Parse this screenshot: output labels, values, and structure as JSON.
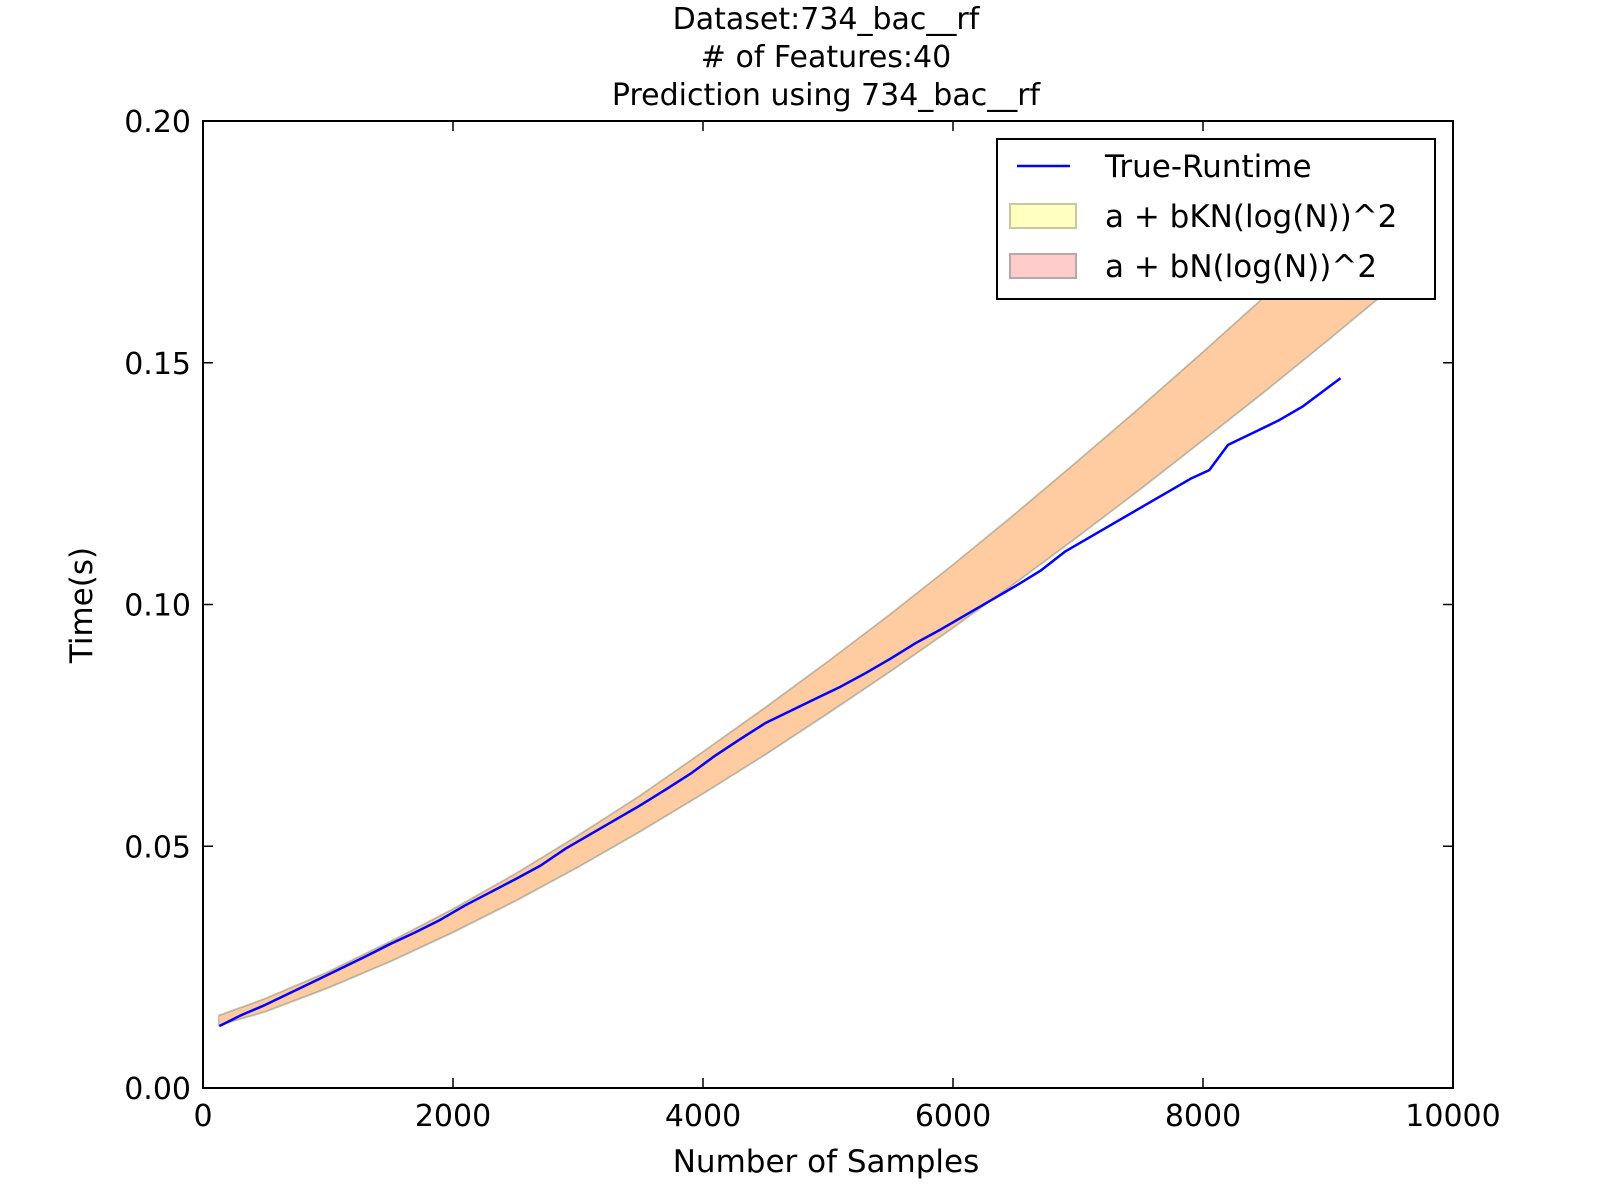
{
  "chart_data": {
    "type": "line",
    "title_lines": [
      "Dataset:734_bac__rf",
      "# of Features:40",
      "Prediction using 734_bac__rf"
    ],
    "xlabel": "Number of Samples",
    "ylabel": "Time(s)",
    "xlim": [
      0,
      10000
    ],
    "ylim": [
      0.0,
      0.2
    ],
    "xticks": [
      0,
      2000,
      4000,
      6000,
      8000,
      10000
    ],
    "yticks": [
      0.0,
      0.05,
      0.1,
      0.15,
      0.2
    ],
    "xtick_labels": [
      "0",
      "2000",
      "4000",
      "6000",
      "8000",
      "10000"
    ],
    "ytick_labels": [
      "0.00",
      "0.05",
      "0.10",
      "0.15",
      "0.20"
    ],
    "grid": false,
    "legend_position": "top-right",
    "series": [
      {
        "name": "True-Runtime",
        "kind": "line",
        "color": "#0000ff",
        "x": [
          130,
          300,
          500,
          700,
          900,
          1100,
          1300,
          1500,
          1700,
          1900,
          2100,
          2300,
          2500,
          2700,
          2900,
          3100,
          3300,
          3500,
          3700,
          3900,
          4100,
          4300,
          4500,
          4700,
          4900,
          5100,
          5300,
          5500,
          5700,
          5900,
          6100,
          6300,
          6500,
          6700,
          6900,
          7100,
          7300,
          7500,
          7700,
          7900,
          8050,
          8200,
          8400,
          8600,
          8800,
          9100
        ],
        "y": [
          0.0128,
          0.015,
          0.0172,
          0.0197,
          0.0222,
          0.0247,
          0.0272,
          0.0298,
          0.0322,
          0.0348,
          0.0378,
          0.0405,
          0.0432,
          0.046,
          0.0495,
          0.0525,
          0.0555,
          0.0585,
          0.0617,
          0.065,
          0.0688,
          0.0722,
          0.0755,
          0.078,
          0.0805,
          0.083,
          0.0858,
          0.0888,
          0.092,
          0.0948,
          0.0978,
          0.1008,
          0.1038,
          0.107,
          0.111,
          0.114,
          0.117,
          0.12,
          0.123,
          0.126,
          0.1278,
          0.133,
          0.1355,
          0.138,
          0.141,
          0.1468
        ]
      },
      {
        "name": "a + bKN(log(N))^2",
        "kind": "band",
        "fill": "#ffffc0",
        "edge": "#c8c8a0",
        "x": [
          130,
          500,
          1000,
          1500,
          2000,
          2500,
          3000,
          3500,
          4000,
          4500,
          5000,
          5500,
          6000,
          6500,
          7000,
          7500,
          8000,
          8500,
          9000,
          9500,
          9800
        ],
        "upper": [
          0.015,
          0.0185,
          0.024,
          0.0303,
          0.037,
          0.0443,
          0.0522,
          0.0605,
          0.0695,
          0.0787,
          0.0882,
          0.098,
          0.1082,
          0.1188,
          0.1297,
          0.1408,
          0.1522,
          0.1638,
          0.1758,
          0.188,
          0.1955
        ],
        "lower": [
          0.013,
          0.0158,
          0.0207,
          0.0262,
          0.0322,
          0.0387,
          0.0457,
          0.0531,
          0.0609,
          0.069,
          0.0775,
          0.0862,
          0.0952,
          0.1045,
          0.1141,
          0.1239,
          0.134,
          0.1442,
          0.1547,
          0.1654,
          0.172
        ]
      },
      {
        "name": "a + bN(log(N))^2",
        "kind": "band",
        "fill": "#ffb3b3",
        "edge": "#b8a8a8",
        "x": [
          130,
          500,
          1000,
          1500,
          2000,
          2500,
          3000,
          3500,
          4000,
          4500,
          5000,
          5500,
          6000,
          6500,
          7000,
          7500,
          8000,
          8500,
          9000,
          9500,
          9800
        ],
        "upper": [
          0.0148,
          0.0183,
          0.0238,
          0.0301,
          0.0368,
          0.0441,
          0.052,
          0.0603,
          0.0693,
          0.0785,
          0.088,
          0.0978,
          0.108,
          0.1186,
          0.1295,
          0.1406,
          0.152,
          0.1636,
          0.1756,
          0.1878,
          0.1953
        ],
        "lower": [
          0.0132,
          0.016,
          0.0209,
          0.0264,
          0.0324,
          0.0389,
          0.0459,
          0.0533,
          0.0611,
          0.0692,
          0.0777,
          0.0864,
          0.0954,
          0.1047,
          0.1143,
          0.1241,
          0.1342,
          0.1444,
          0.1549,
          0.1656,
          0.1722
        ]
      }
    ],
    "overlap_fill": "#ffcba0"
  }
}
